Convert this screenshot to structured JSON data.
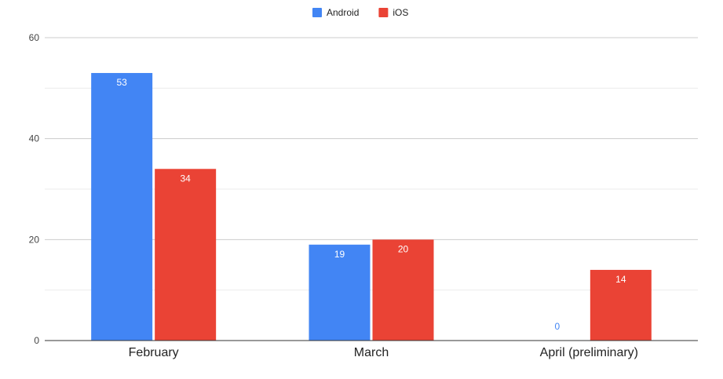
{
  "chart_data": {
    "type": "bar",
    "categories": [
      "February",
      "March",
      "April (preliminary)"
    ],
    "series": [
      {
        "name": "Android",
        "color": "#4285f4",
        "values": [
          53,
          19,
          0
        ]
      },
      {
        "name": "iOS",
        "color": "#ea4335",
        "values": [
          34,
          20,
          14
        ]
      }
    ],
    "ylim": [
      0,
      60
    ],
    "yticks": [
      0,
      20,
      40,
      60
    ],
    "minor_gridlines": true,
    "legend_position": "top-center",
    "data_labels": true
  }
}
